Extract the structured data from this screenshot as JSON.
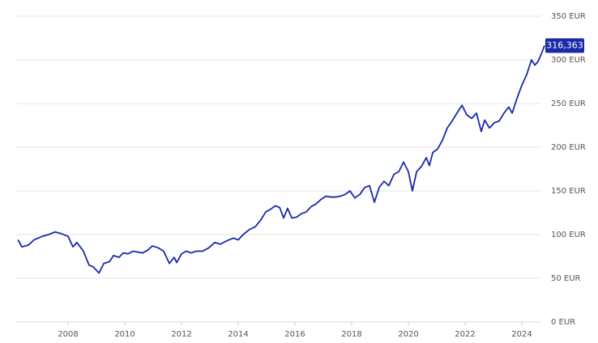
{
  "chart_data": {
    "type": "line",
    "x": [
      2006.23,
      2006.37,
      2006.6,
      2006.8,
      2007.09,
      2007.31,
      2007.54,
      2007.77,
      2008.0,
      2008.17,
      2008.31,
      2008.54,
      2008.74,
      2008.89,
      2009.09,
      2009.26,
      2009.46,
      2009.6,
      2009.8,
      2009.94,
      2010.11,
      2010.29,
      2010.46,
      2010.63,
      2010.8,
      2010.97,
      2011.17,
      2011.37,
      2011.57,
      2011.74,
      2011.83,
      2012.0,
      2012.17,
      2012.34,
      2012.51,
      2012.74,
      2012.97,
      2013.17,
      2013.37,
      2013.6,
      2013.83,
      2014.0,
      2014.17,
      2014.4,
      2014.6,
      2014.8,
      2014.97,
      2015.14,
      2015.31,
      2015.46,
      2015.6,
      2015.74,
      2015.89,
      2016.06,
      2016.23,
      2016.4,
      2016.57,
      2016.74,
      2016.91,
      2017.09,
      2017.26,
      2017.43,
      2017.6,
      2017.77,
      2017.94,
      2018.11,
      2018.29,
      2018.46,
      2018.63,
      2018.8,
      2018.97,
      2019.14,
      2019.31,
      2019.49,
      2019.66,
      2019.83,
      2020.0,
      2020.14,
      2020.29,
      2020.46,
      2020.63,
      2020.74,
      2020.86,
      2021.03,
      2021.2,
      2021.37,
      2021.54,
      2021.71,
      2021.89,
      2022.06,
      2022.23,
      2022.4,
      2022.57,
      2022.69,
      2022.86,
      2023.03,
      2023.2,
      2023.37,
      2023.54,
      2023.66,
      2023.83,
      2024.0,
      2024.17,
      2024.34,
      2024.46,
      2024.57,
      2024.69,
      2024.8
    ],
    "series": [
      {
        "color": "#1a2aa8",
        "values": [
          94,
          86,
          88,
          94,
          98,
          100,
          103,
          101,
          98,
          86,
          91,
          81,
          65,
          63,
          56,
          67,
          69,
          76,
          74,
          79,
          78,
          81,
          80,
          79,
          82,
          87,
          85,
          81,
          67,
          74,
          68,
          78,
          81,
          79,
          81,
          81,
          85,
          91,
          89,
          93,
          96,
          94,
          100,
          106,
          109,
          117,
          126,
          129,
          133,
          131,
          119,
          130,
          119,
          120,
          124,
          126,
          132,
          135,
          140,
          144,
          143,
          143,
          144,
          146,
          150,
          142,
          146,
          154,
          156,
          137,
          154,
          161,
          156,
          169,
          172,
          183,
          172,
          150,
          172,
          178,
          188,
          179,
          194,
          198,
          208,
          222,
          230,
          239,
          248,
          237,
          233,
          239,
          218,
          231,
          222,
          228,
          230,
          239,
          246,
          239,
          256,
          271,
          283,
          300,
          294,
          298,
          307,
          316.363
        ],
        "value_labels": [
          null,
          null,
          null,
          null,
          null,
          null,
          null,
          null,
          null,
          null,
          null,
          null,
          null,
          null,
          null,
          null,
          null,
          null,
          null,
          null,
          null,
          null,
          null,
          null,
          null,
          null,
          null,
          null,
          null,
          null,
          null,
          null,
          null,
          null,
          null,
          null,
          null,
          null,
          null,
          null,
          null,
          null,
          null,
          null,
          null,
          null,
          null,
          null,
          null,
          null,
          null,
          null,
          null,
          null,
          null,
          null,
          null,
          null,
          null,
          null,
          null,
          null,
          null,
          null,
          null,
          null,
          null,
          null,
          null,
          null,
          null,
          null,
          null,
          null,
          null,
          null,
          null,
          null,
          null,
          null,
          null,
          null,
          null,
          null,
          null,
          null,
          null,
          null,
          null,
          null,
          null,
          null,
          null,
          null,
          null,
          null,
          null,
          null,
          null,
          null,
          null,
          null,
          null,
          null,
          null,
          null,
          null,
          "316,363"
        ]
      }
    ],
    "xlim": [
      2006.17,
      2024.8
    ],
    "xticks": [
      2008,
      2010,
      2012,
      2014,
      2016,
      2018,
      2020,
      2022,
      2024
    ],
    "ylim": [
      0,
      350
    ],
    "yticks": [
      {
        "value": 0,
        "label": "0 EUR"
      },
      {
        "value": 50,
        "label": "50 EUR"
      },
      {
        "value": 100,
        "label": "100 EUR"
      },
      {
        "value": 150,
        "label": "150 EUR"
      },
      {
        "value": 200,
        "label": "200 EUR"
      },
      {
        "value": 250,
        "label": "250 EUR"
      },
      {
        "value": 300,
        "label": "300 EUR"
      },
      {
        "value": 350,
        "label": "350 EUR"
      }
    ],
    "grid": true
  }
}
